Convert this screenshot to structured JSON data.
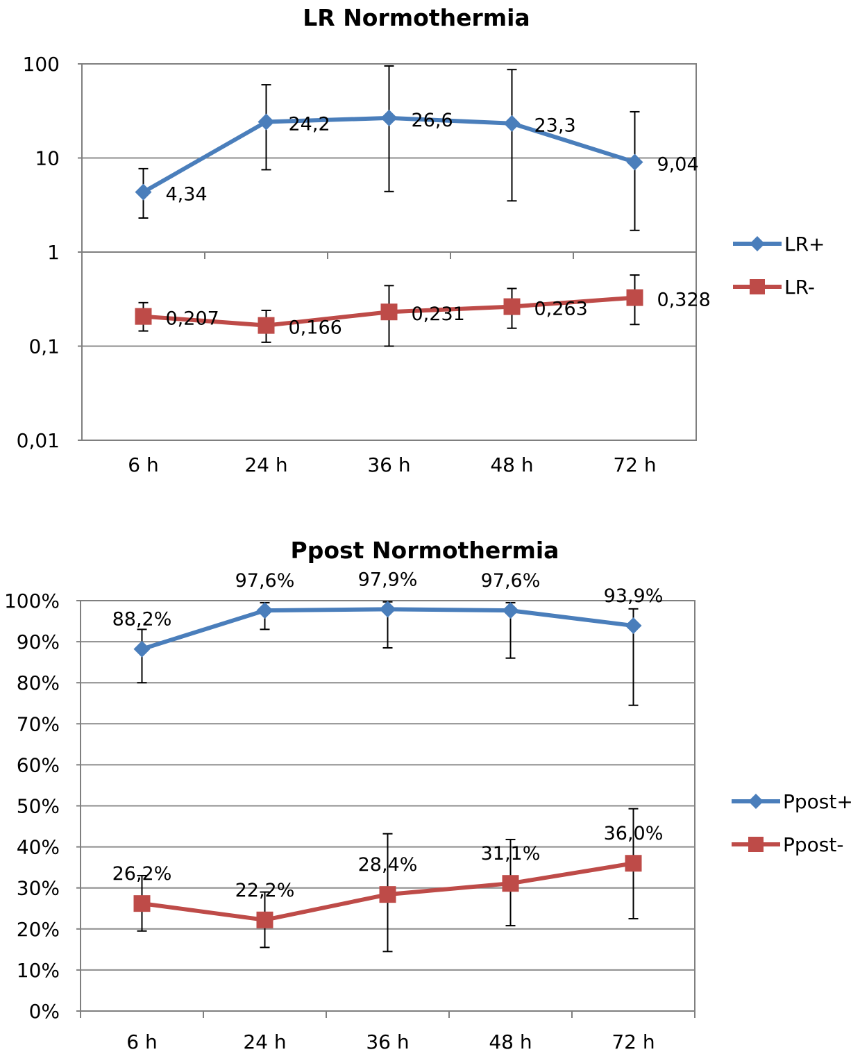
{
  "chart_data": [
    {
      "type": "line",
      "title": "LR Normothermia",
      "categories": [
        "6 h",
        "24 h",
        "36 h",
        "48 h",
        "72 h"
      ],
      "y_scale": "log",
      "ylim": [
        0.01,
        100
      ],
      "y_ticks": [
        0.01,
        0.1,
        1,
        10,
        100
      ],
      "y_tick_labels": [
        "0,01",
        "0,1",
        "1",
        "10",
        "100"
      ],
      "grid": true,
      "legend_position": "right",
      "series": [
        {
          "name": "LR+",
          "color": "#4a7ebb",
          "marker": "diamond",
          "values": [
            4.34,
            24.2,
            26.6,
            23.3,
            9.04
          ],
          "labels": [
            "4,34",
            "24,2",
            "26,6",
            "23,3",
            "9,04"
          ],
          "error_low": [
            2.3,
            7.5,
            4.4,
            3.5,
            1.7
          ],
          "error_high": [
            7.7,
            60,
            95,
            87,
            31
          ]
        },
        {
          "name": "LR-",
          "color": "#be4b48",
          "marker": "square",
          "values": [
            0.207,
            0.166,
            0.231,
            0.263,
            0.328
          ],
          "labels": [
            "0,207",
            "0,166",
            "0,231",
            "0,263",
            "0,328"
          ],
          "error_low": [
            0.145,
            0.11,
            0.1,
            0.155,
            0.17
          ],
          "error_high": [
            0.29,
            0.24,
            0.44,
            0.41,
            0.57
          ]
        }
      ]
    },
    {
      "type": "line",
      "title": "Ppost Normothermia",
      "categories": [
        "6 h",
        "24 h",
        "36 h",
        "48 h",
        "72 h"
      ],
      "y_scale": "linear",
      "ylim": [
        0,
        100
      ],
      "y_ticks": [
        0,
        10,
        20,
        30,
        40,
        50,
        60,
        70,
        80,
        90,
        100
      ],
      "y_tick_labels": [
        "0%",
        "10%",
        "20%",
        "30%",
        "40%",
        "50%",
        "60%",
        "70%",
        "80%",
        "90%",
        "100%"
      ],
      "grid": true,
      "legend_position": "right",
      "series": [
        {
          "name": "Ppost+",
          "color": "#4a7ebb",
          "marker": "diamond",
          "values": [
            88.2,
            97.6,
            97.9,
            97.6,
            93.9
          ],
          "labels": [
            "88,2%",
            "97,6%",
            "97,9%",
            "97,6%",
            "93,9%"
          ],
          "error_low": [
            80,
            93,
            88.5,
            86,
            74.5
          ],
          "error_high": [
            93,
            99.5,
            99.7,
            99.5,
            98
          ]
        },
        {
          "name": "Ppost-",
          "color": "#be4b48",
          "marker": "square",
          "values": [
            26.2,
            22.2,
            28.4,
            31.1,
            36.0
          ],
          "labels": [
            "26,2%",
            "22,2%",
            "28,4%",
            "31,1%",
            "36,0%"
          ],
          "error_low": [
            19.5,
            15.5,
            14.5,
            20.8,
            22.5
          ],
          "error_high": [
            33,
            29,
            43.2,
            41.8,
            49.3
          ]
        }
      ]
    }
  ]
}
